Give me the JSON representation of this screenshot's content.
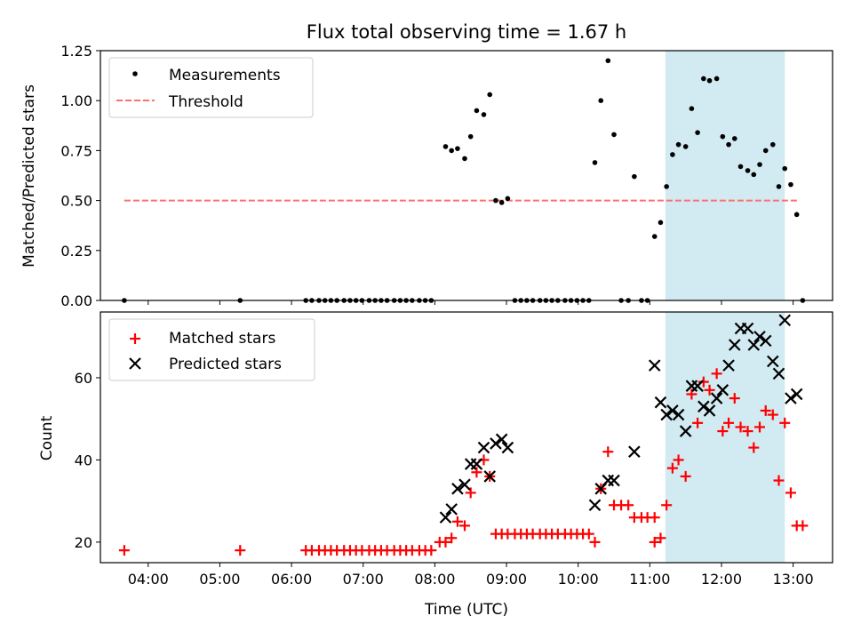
{
  "chart_data": [
    {
      "type": "scatter",
      "title": "Flux total observing time = 1.67 h",
      "ylabel": "Matched/Predicted stars",
      "xlim": [
        "03:20",
        "13:33"
      ],
      "ylim": [
        0,
        1.25
      ],
      "yticks": [
        "0.00",
        "0.25",
        "0.50",
        "0.75",
        "1.00",
        "1.25"
      ],
      "xticks": [
        "04:00",
        "05:00",
        "06:00",
        "07:00",
        "08:00",
        "09:00",
        "10:00",
        "11:00",
        "12:00",
        "13:00"
      ],
      "shaded_region": {
        "start": "11:13",
        "end": "12:53",
        "color": "#add8e6"
      },
      "legend_position": "upper-left",
      "threshold": {
        "name": "Threshold",
        "value": 0.5,
        "start": "03:40",
        "end": "13:05",
        "color": "#ff6f6f"
      },
      "series": [
        {
          "name": "Measurements",
          "color": "#000000",
          "points": [
            [
              "03:40",
              0
            ],
            [
              "05:17",
              0
            ],
            [
              "06:12",
              0
            ],
            [
              "06:17",
              0
            ],
            [
              "06:23",
              0
            ],
            [
              "06:28",
              0
            ],
            [
              "06:33",
              0
            ],
            [
              "06:38",
              0
            ],
            [
              "06:44",
              0
            ],
            [
              "06:49",
              0
            ],
            [
              "06:54",
              0
            ],
            [
              "06:59",
              0
            ],
            [
              "07:05",
              0
            ],
            [
              "07:10",
              0
            ],
            [
              "07:15",
              0
            ],
            [
              "07:20",
              0
            ],
            [
              "07:26",
              0
            ],
            [
              "07:31",
              0
            ],
            [
              "07:36",
              0
            ],
            [
              "07:41",
              0
            ],
            [
              "07:47",
              0
            ],
            [
              "07:52",
              0
            ],
            [
              "07:57",
              0
            ],
            [
              "08:09",
              0.77
            ],
            [
              "08:14",
              0.75
            ],
            [
              "08:19",
              0.76
            ],
            [
              "08:25",
              0.71
            ],
            [
              "08:30",
              0.82
            ],
            [
              "08:35",
              0.95
            ],
            [
              "08:41",
              0.93
            ],
            [
              "08:46",
              1.03
            ],
            [
              "08:51",
              0.5
            ],
            [
              "08:56",
              0.49
            ],
            [
              "09:01",
              0.51
            ],
            [
              "09:07",
              0
            ],
            [
              "09:12",
              0
            ],
            [
              "09:17",
              0
            ],
            [
              "09:22",
              0
            ],
            [
              "09:28",
              0
            ],
            [
              "09:33",
              0
            ],
            [
              "09:38",
              0
            ],
            [
              "09:43",
              0
            ],
            [
              "09:49",
              0
            ],
            [
              "09:54",
              0
            ],
            [
              "09:59",
              0
            ],
            [
              "10:04",
              0
            ],
            [
              "10:09",
              0
            ],
            [
              "10:14",
              0.69
            ],
            [
              "10:19",
              1.0
            ],
            [
              "10:25",
              1.2
            ],
            [
              "10:30",
              0.83
            ],
            [
              "10:36",
              0
            ],
            [
              "10:42",
              0
            ],
            [
              "10:47",
              0.62
            ],
            [
              "10:53",
              0
            ],
            [
              "10:58",
              0
            ],
            [
              "11:04",
              0.32
            ],
            [
              "11:09",
              0.39
            ],
            [
              "11:14",
              0.57
            ],
            [
              "11:19",
              0.73
            ],
            [
              "11:24",
              0.78
            ],
            [
              "11:30",
              0.77
            ],
            [
              "11:35",
              0.96
            ],
            [
              "11:40",
              0.84
            ],
            [
              "11:45",
              1.11
            ],
            [
              "11:50",
              1.1
            ],
            [
              "11:56",
              1.11
            ],
            [
              "12:01",
              0.82
            ],
            [
              "12:06",
              0.78
            ],
            [
              "12:11",
              0.81
            ],
            [
              "12:16",
              0.67
            ],
            [
              "12:22",
              0.65
            ],
            [
              "12:27",
              0.63
            ],
            [
              "12:32",
              0.68
            ],
            [
              "12:37",
              0.75
            ],
            [
              "12:43",
              0.78
            ],
            [
              "12:48",
              0.57
            ],
            [
              "12:53",
              0.66
            ],
            [
              "12:58",
              0.58
            ],
            [
              "13:03",
              0.43
            ],
            [
              "13:08",
              0
            ]
          ]
        }
      ]
    },
    {
      "type": "scatter",
      "xlabel": "Time (UTC)",
      "ylabel": "Count",
      "xlim": [
        "03:20",
        "13:33"
      ],
      "ylim": [
        15,
        76
      ],
      "yticks": [
        "20",
        "40",
        "60"
      ],
      "xticks": [
        "04:00",
        "05:00",
        "06:00",
        "07:00",
        "08:00",
        "09:00",
        "10:00",
        "11:00",
        "12:00",
        "13:00"
      ],
      "shaded_region": {
        "start": "11:13",
        "end": "12:53",
        "color": "#add8e6"
      },
      "legend_position": "upper-left",
      "series": [
        {
          "name": "Matched stars",
          "marker": "plus",
          "color": "#ff0000",
          "points": [
            [
              "03:40",
              18
            ],
            [
              "05:17",
              18
            ],
            [
              "06:12",
              18
            ],
            [
              "06:17",
              18
            ],
            [
              "06:23",
              18
            ],
            [
              "06:28",
              18
            ],
            [
              "06:33",
              18
            ],
            [
              "06:38",
              18
            ],
            [
              "06:44",
              18
            ],
            [
              "06:49",
              18
            ],
            [
              "06:54",
              18
            ],
            [
              "06:59",
              18
            ],
            [
              "07:05",
              18
            ],
            [
              "07:10",
              18
            ],
            [
              "07:15",
              18
            ],
            [
              "07:20",
              18
            ],
            [
              "07:26",
              18
            ],
            [
              "07:31",
              18
            ],
            [
              "07:36",
              18
            ],
            [
              "07:41",
              18
            ],
            [
              "07:47",
              18
            ],
            [
              "07:52",
              18
            ],
            [
              "07:57",
              18
            ],
            [
              "08:04",
              20
            ],
            [
              "08:09",
              20
            ],
            [
              "08:14",
              21
            ],
            [
              "08:19",
              25
            ],
            [
              "08:25",
              24
            ],
            [
              "08:30",
              32
            ],
            [
              "08:35",
              37
            ],
            [
              "08:41",
              40
            ],
            [
              "08:46",
              36
            ],
            [
              "08:51",
              22
            ],
            [
              "08:56",
              22
            ],
            [
              "09:01",
              22
            ],
            [
              "09:07",
              22
            ],
            [
              "09:12",
              22
            ],
            [
              "09:17",
              22
            ],
            [
              "09:22",
              22
            ],
            [
              "09:28",
              22
            ],
            [
              "09:33",
              22
            ],
            [
              "09:38",
              22
            ],
            [
              "09:43",
              22
            ],
            [
              "09:49",
              22
            ],
            [
              "09:54",
              22
            ],
            [
              "09:59",
              22
            ],
            [
              "10:04",
              22
            ],
            [
              "10:09",
              22
            ],
            [
              "10:14",
              20
            ],
            [
              "10:19",
              33
            ],
            [
              "10:25",
              42
            ],
            [
              "10:30",
              29
            ],
            [
              "10:36",
              29
            ],
            [
              "10:42",
              29
            ],
            [
              "10:47",
              26
            ],
            [
              "10:53",
              26
            ],
            [
              "10:58",
              26
            ],
            [
              "11:04",
              26
            ],
            [
              "11:04",
              20
            ],
            [
              "11:09",
              21
            ],
            [
              "11:14",
              29
            ],
            [
              "11:19",
              38
            ],
            [
              "11:24",
              40
            ],
            [
              "11:30",
              36
            ],
            [
              "11:35",
              56
            ],
            [
              "11:40",
              49
            ],
            [
              "11:45",
              59
            ],
            [
              "11:50",
              57
            ],
            [
              "11:56",
              61
            ],
            [
              "12:01",
              47
            ],
            [
              "12:06",
              49
            ],
            [
              "12:11",
              55
            ],
            [
              "12:16",
              48
            ],
            [
              "12:22",
              47
            ],
            [
              "12:27",
              43
            ],
            [
              "12:32",
              48
            ],
            [
              "12:37",
              52
            ],
            [
              "12:43",
              51
            ],
            [
              "12:48",
              35
            ],
            [
              "12:53",
              49
            ],
            [
              "12:58",
              32
            ],
            [
              "13:03",
              24
            ],
            [
              "13:08",
              24
            ]
          ]
        },
        {
          "name": "Predicted stars",
          "marker": "x",
          "color": "#000000",
          "points": [
            [
              "08:09",
              26
            ],
            [
              "08:14",
              28
            ],
            [
              "08:19",
              33
            ],
            [
              "08:25",
              34
            ],
            [
              "08:30",
              39
            ],
            [
              "08:35",
              39
            ],
            [
              "08:41",
              43
            ],
            [
              "08:46",
              36
            ],
            [
              "08:51",
              44
            ],
            [
              "08:56",
              45
            ],
            [
              "09:01",
              43
            ],
            [
              "10:14",
              29
            ],
            [
              "10:19",
              33
            ],
            [
              "10:25",
              35
            ],
            [
              "10:30",
              35
            ],
            [
              "10:47",
              42
            ],
            [
              "11:04",
              63
            ],
            [
              "11:09",
              54
            ],
            [
              "11:14",
              51
            ],
            [
              "11:19",
              52
            ],
            [
              "11:24",
              51
            ],
            [
              "11:30",
              47
            ],
            [
              "11:35",
              58
            ],
            [
              "11:40",
              58
            ],
            [
              "11:45",
              53
            ],
            [
              "11:50",
              52
            ],
            [
              "11:56",
              55
            ],
            [
              "12:01",
              57
            ],
            [
              "12:06",
              63
            ],
            [
              "12:11",
              68
            ],
            [
              "12:16",
              72
            ],
            [
              "12:22",
              72
            ],
            [
              "12:27",
              68
            ],
            [
              "12:32",
              70
            ],
            [
              "12:37",
              69
            ],
            [
              "12:43",
              64
            ],
            [
              "12:48",
              61
            ],
            [
              "12:53",
              74
            ],
            [
              "12:58",
              55
            ],
            [
              "13:03",
              56
            ]
          ]
        }
      ]
    }
  ]
}
